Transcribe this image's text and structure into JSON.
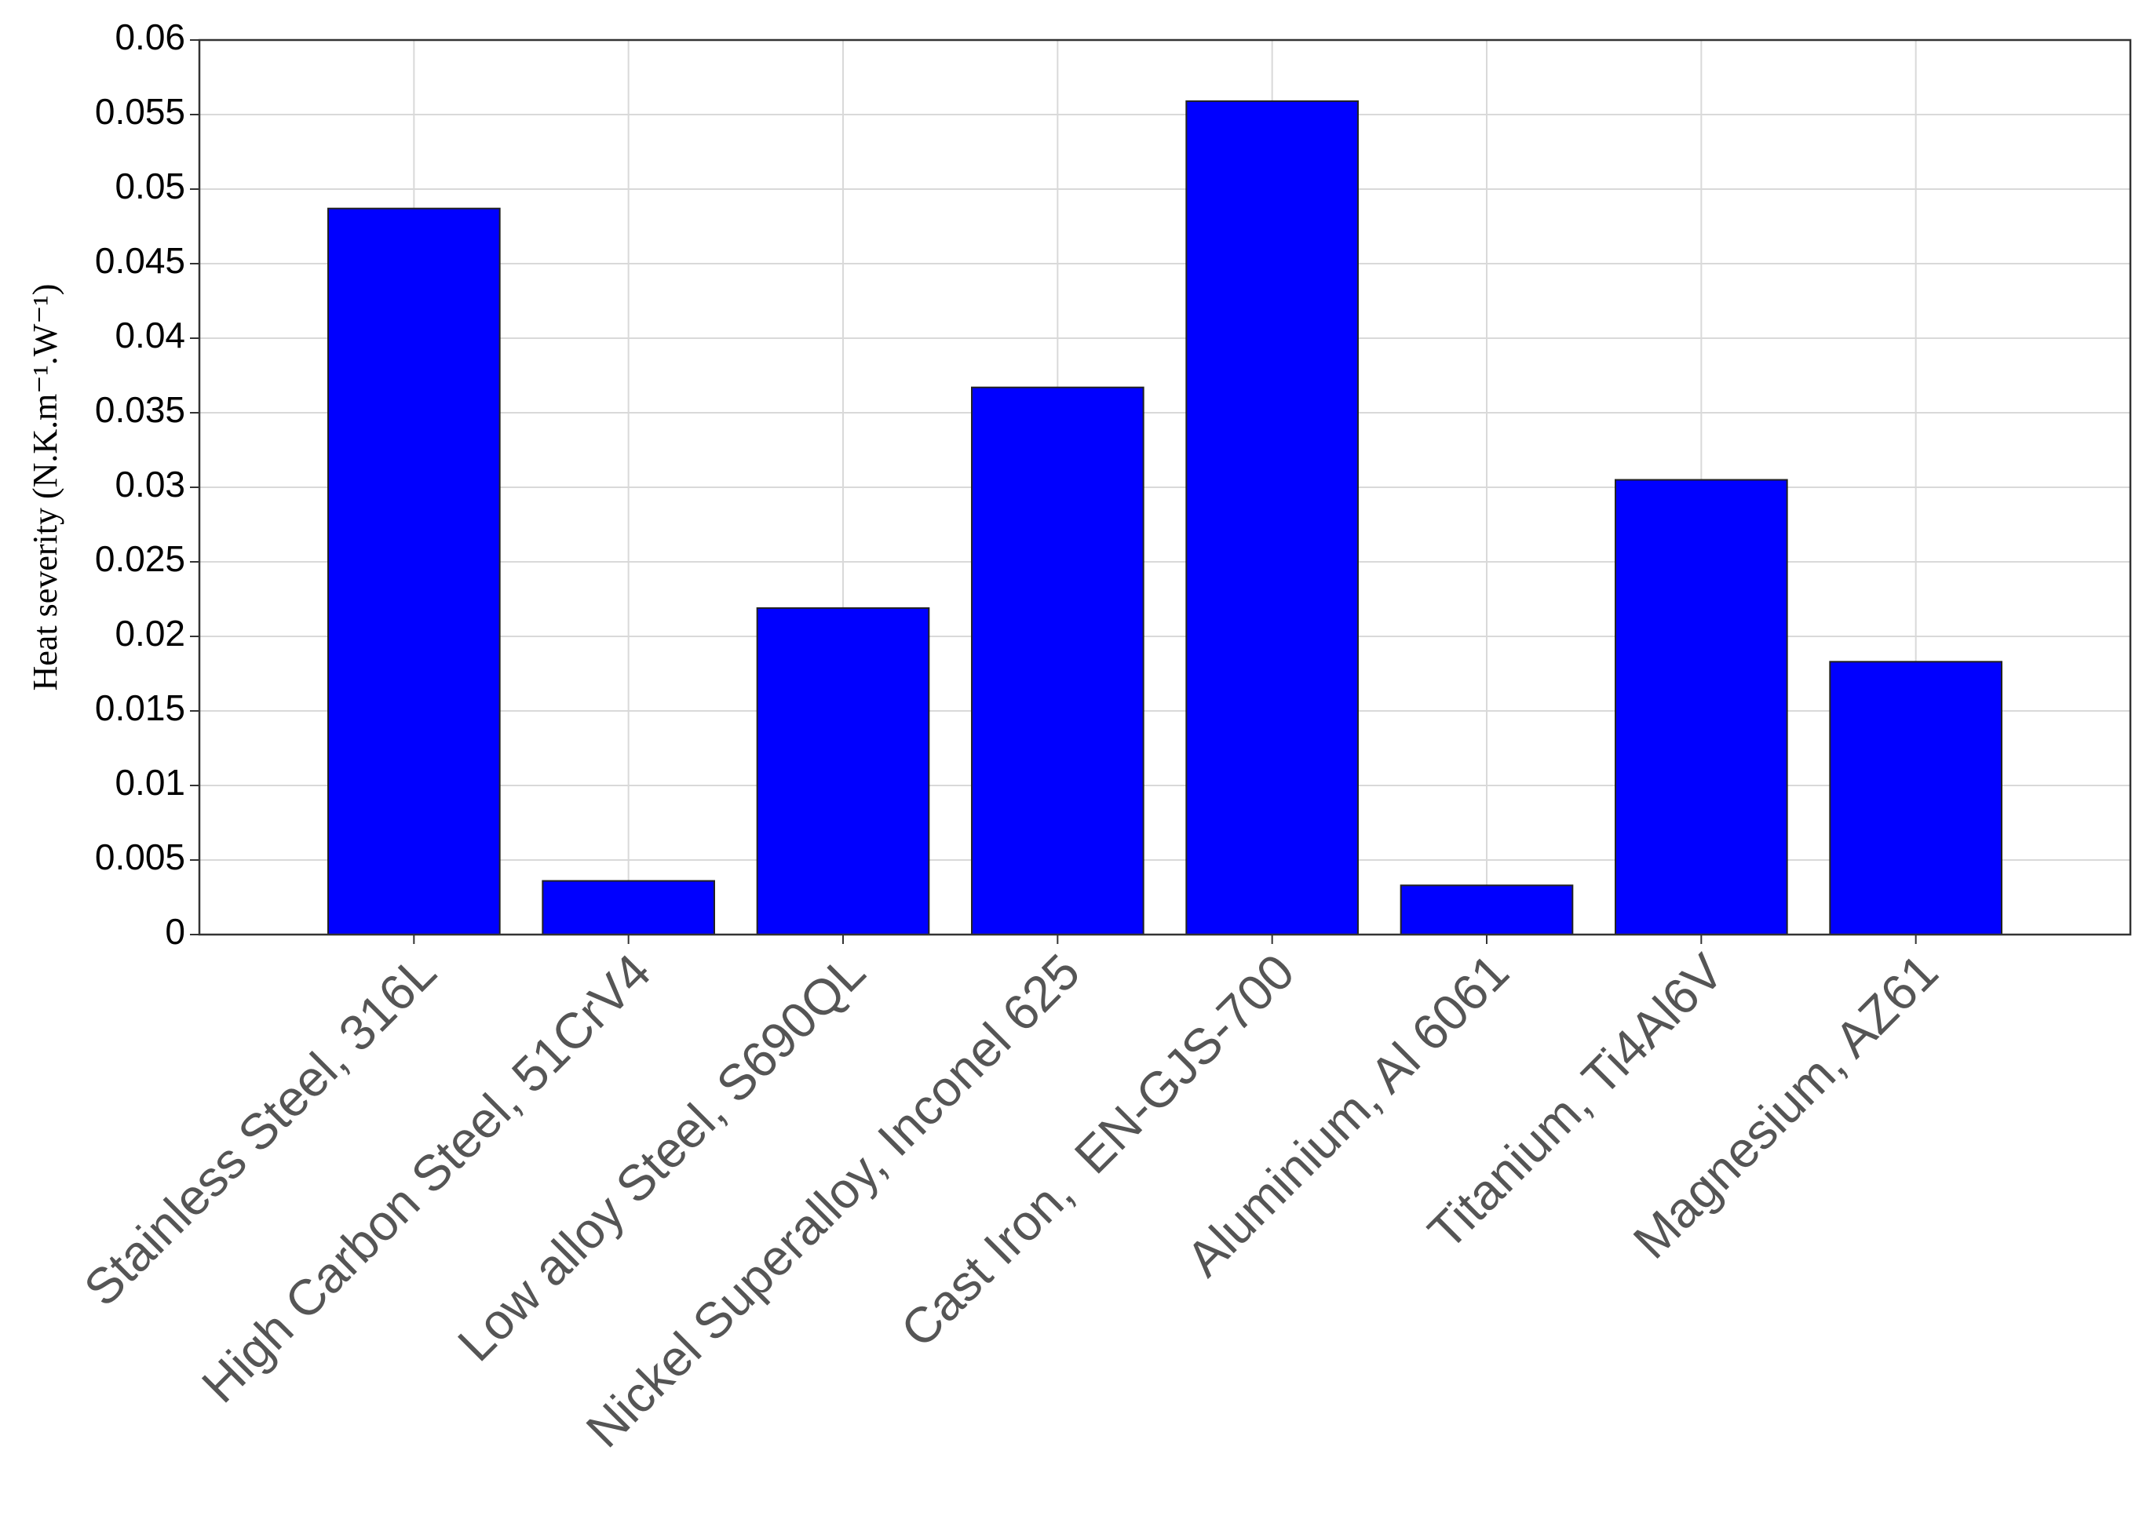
{
  "chart_data": {
    "type": "bar",
    "y_label": "Heat severity (N.K.m⁻¹.W⁻¹)",
    "categories": [
      "Stainless Steel, 316L",
      "High Carbon Steel, 51CrV4",
      "Low alloy Steel, S690QL",
      "Nickel Superalloy, Inconel 625",
      "Cast Iron,  EN-GJS-700",
      "Aluminium, Al 6061",
      "Titanium, Ti4Al6V",
      "Magnesium, AZ61"
    ],
    "values": [
      0.0487,
      0.0036,
      0.0219,
      0.0367,
      0.0559,
      0.0033,
      0.0305,
      0.0183
    ],
    "color": "#0000ff",
    "ylim": [
      0,
      0.06
    ],
    "yticks": [
      0,
      0.005,
      0.01,
      0.015,
      0.02,
      0.025,
      0.03,
      0.035,
      0.04,
      0.045,
      0.05,
      0.055,
      0.06
    ],
    "grid": true
  }
}
